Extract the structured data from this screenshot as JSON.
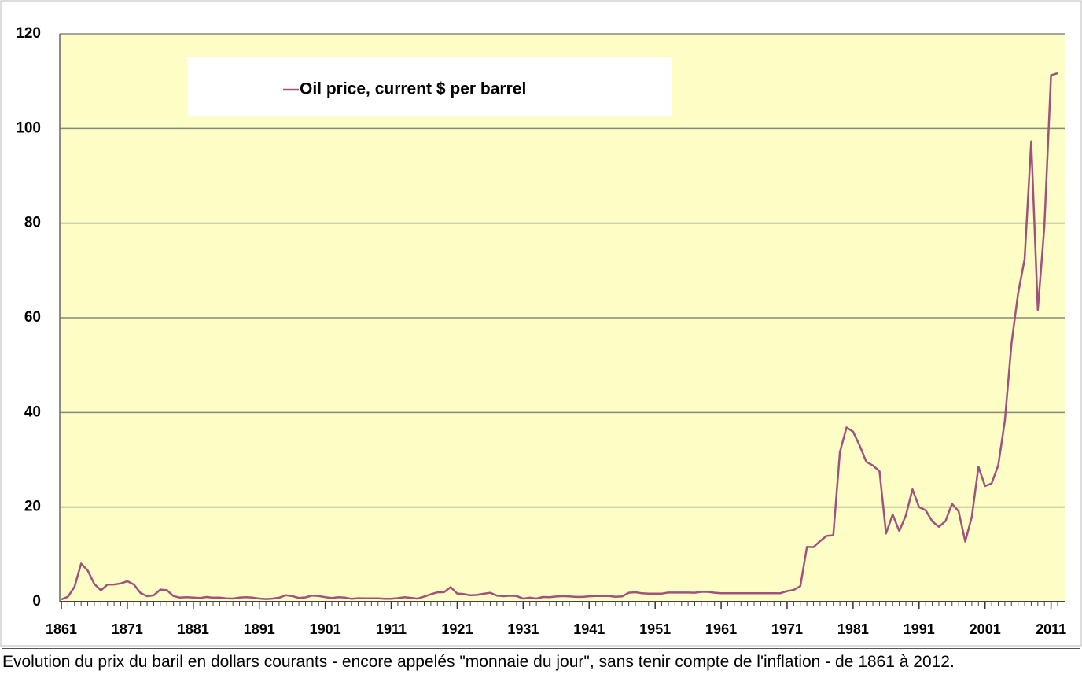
{
  "chart_data": {
    "type": "line",
    "caption": "Evolution du prix du baril en dollars courants - encore appelés \"monnaie du jour\", sans tenir compte de l'inflation - de 1861 à 2012.",
    "x": [
      1861,
      1862,
      1863,
      1864,
      1865,
      1866,
      1867,
      1868,
      1869,
      1870,
      1871,
      1872,
      1873,
      1874,
      1875,
      1876,
      1877,
      1878,
      1879,
      1880,
      1881,
      1882,
      1883,
      1884,
      1885,
      1886,
      1887,
      1888,
      1889,
      1890,
      1891,
      1892,
      1893,
      1894,
      1895,
      1896,
      1897,
      1898,
      1899,
      1900,
      1901,
      1902,
      1903,
      1904,
      1905,
      1906,
      1907,
      1908,
      1909,
      1910,
      1911,
      1912,
      1913,
      1914,
      1915,
      1916,
      1917,
      1918,
      1919,
      1920,
      1921,
      1922,
      1923,
      1924,
      1925,
      1926,
      1927,
      1928,
      1929,
      1930,
      1931,
      1932,
      1933,
      1934,
      1935,
      1936,
      1937,
      1938,
      1939,
      1940,
      1941,
      1942,
      1943,
      1944,
      1945,
      1946,
      1947,
      1948,
      1949,
      1950,
      1951,
      1952,
      1953,
      1954,
      1955,
      1956,
      1957,
      1958,
      1959,
      1960,
      1961,
      1962,
      1963,
      1964,
      1965,
      1966,
      1967,
      1968,
      1969,
      1970,
      1971,
      1972,
      1973,
      1974,
      1975,
      1976,
      1977,
      1978,
      1979,
      1980,
      1981,
      1982,
      1983,
      1984,
      1985,
      1986,
      1987,
      1988,
      1989,
      1990,
      1991,
      1992,
      1993,
      1994,
      1995,
      1996,
      1997,
      1998,
      1999,
      2000,
      2001,
      2002,
      2003,
      2004,
      2005,
      2006,
      2007,
      2008,
      2009,
      2010,
      2011,
      2012
    ],
    "series": [
      {
        "name": "Oil price, current $ per barrel",
        "color": "#a0527e",
        "values": [
          0.49,
          1.05,
          3.15,
          8.06,
          6.59,
          3.74,
          2.41,
          3.63,
          3.64,
          3.86,
          4.34,
          3.64,
          1.83,
          1.17,
          1.35,
          2.56,
          2.42,
          1.19,
          0.86,
          0.95,
          0.86,
          0.78,
          1.0,
          0.84,
          0.88,
          0.71,
          0.67,
          0.88,
          0.94,
          0.87,
          0.67,
          0.56,
          0.64,
          0.84,
          1.36,
          1.18,
          0.79,
          0.91,
          1.29,
          1.19,
          0.96,
          0.8,
          0.94,
          0.86,
          0.62,
          0.73,
          0.72,
          0.72,
          0.7,
          0.61,
          0.61,
          0.74,
          0.95,
          0.81,
          0.64,
          1.1,
          1.56,
          1.98,
          2.01,
          3.07,
          1.73,
          1.61,
          1.34,
          1.43,
          1.68,
          1.88,
          1.3,
          1.17,
          1.27,
          1.19,
          0.65,
          0.87,
          0.67,
          1.0,
          0.97,
          1.09,
          1.18,
          1.13,
          1.02,
          1.02,
          1.14,
          1.19,
          1.2,
          1.21,
          1.05,
          1.12,
          1.9,
          1.99,
          1.78,
          1.71,
          1.71,
          1.71,
          1.93,
          1.93,
          1.93,
          1.93,
          1.9,
          2.08,
          2.08,
          1.9,
          1.8,
          1.8,
          1.8,
          1.8,
          1.8,
          1.8,
          1.8,
          1.8,
          1.8,
          1.8,
          2.24,
          2.48,
          3.29,
          11.58,
          11.53,
          12.8,
          13.92,
          14.02,
          31.61,
          36.83,
          35.93,
          32.97,
          29.55,
          28.78,
          27.56,
          14.43,
          18.44,
          14.92,
          18.23,
          23.73,
          20.0,
          19.32,
          16.97,
          15.82,
          17.02,
          20.67,
          19.09,
          12.72,
          17.97,
          28.5,
          24.44,
          25.02,
          28.83,
          38.27,
          54.52,
          65.14,
          72.39,
          97.26,
          61.67,
          79.5,
          111.26,
          111.67
        ]
      }
    ],
    "xlim": [
      1861,
      2012
    ],
    "xticks": [
      1861,
      1871,
      1881,
      1891,
      1901,
      1911,
      1921,
      1931,
      1941,
      1951,
      1961,
      1971,
      1981,
      1991,
      2001,
      2011
    ],
    "ylim": [
      0,
      120
    ],
    "yticks": [
      0,
      20,
      40,
      60,
      80,
      100,
      120
    ],
    "grid": true,
    "legend": "top-left"
  }
}
